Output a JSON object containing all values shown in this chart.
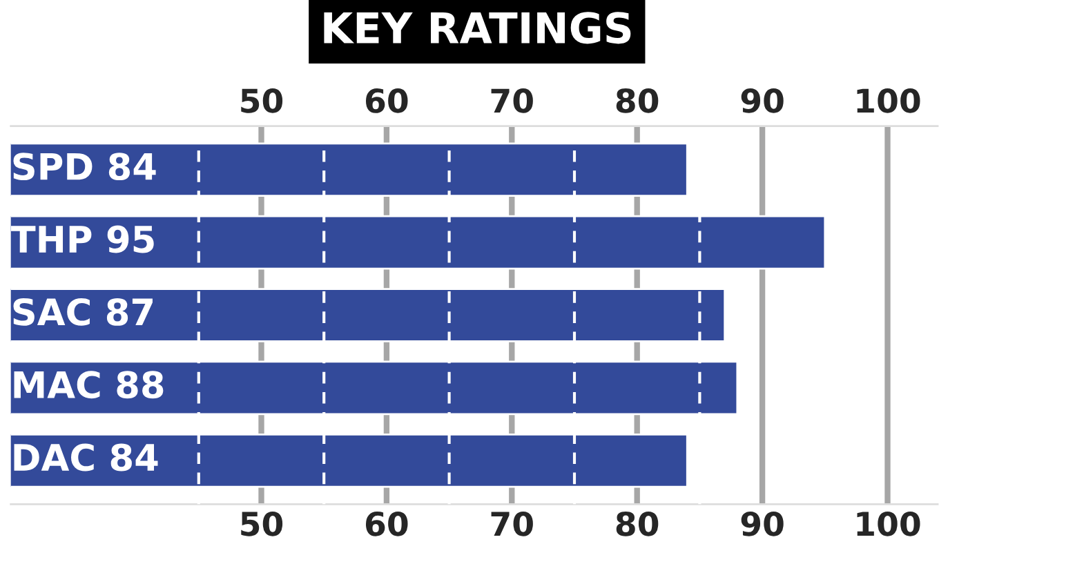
{
  "chart_data": {
    "type": "bar",
    "orientation": "horizontal",
    "title": "KEY RATINGS",
    "categories": [
      "SPD 84",
      "THP 95",
      "SAC 87",
      "MAC 88",
      "DAC 84"
    ],
    "values": [
      84,
      95,
      87,
      88,
      84
    ],
    "color": "#334a9a",
    "xlim": [
      30,
      104
    ],
    "xticks": [
      50,
      60,
      70,
      80,
      90,
      100
    ],
    "x2lim": [
      30,
      104
    ],
    "x2ticks": [
      50,
      60,
      70,
      80,
      90,
      100
    ],
    "grid": "x",
    "ref_lines": [
      {
        "axis": "x",
        "value": 45,
        "color": "#ffffff",
        "line_style": "dashed"
      },
      {
        "axis": "x",
        "value": 55,
        "color": "#ffffff",
        "line_style": "dashed"
      },
      {
        "axis": "x",
        "value": 65,
        "color": "#ffffff",
        "line_style": "dashed"
      },
      {
        "axis": "x",
        "value": 75,
        "color": "#ffffff",
        "line_style": "dashed"
      },
      {
        "axis": "x",
        "value": 85,
        "color": "#ffffff",
        "line_style": "dashed"
      }
    ]
  }
}
